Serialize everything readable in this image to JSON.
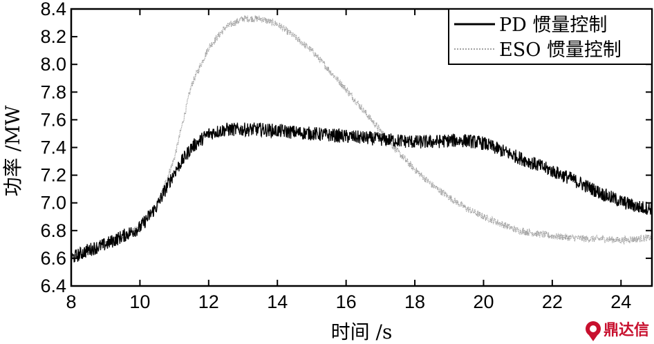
{
  "chart_data": {
    "type": "line",
    "title": "",
    "xlabel": "时间 /s",
    "ylabel": "功率 /MW",
    "xlim": [
      8,
      24.9
    ],
    "ylim": [
      6.4,
      8.4
    ],
    "xticks": [
      8,
      10,
      12,
      14,
      16,
      18,
      20,
      22,
      24
    ],
    "yticks": [
      6.4,
      6.6,
      6.8,
      7.0,
      7.2,
      7.4,
      7.6,
      7.8,
      8.0,
      8.2,
      8.4
    ],
    "ytick_labels": [
      "6.4",
      "6.6",
      "6.8",
      "7.0",
      "7.2",
      "7.4",
      "7.6",
      "7.8",
      "8.0",
      "8.2",
      "8.4"
    ],
    "grid": false,
    "legend_position": "top-right",
    "series": [
      {
        "name": "PD 惯量控制",
        "color": "#000000",
        "style": "solid",
        "noise": 0.05,
        "x": [
          8,
          8.5,
          9,
          9.5,
          10,
          10.5,
          11,
          11.5,
          12,
          12.5,
          13,
          13.5,
          14,
          14.5,
          15,
          15.5,
          16,
          16.5,
          17,
          17.5,
          18,
          18.5,
          19,
          19.5,
          20,
          20.5,
          21,
          21.5,
          22,
          22.5,
          23,
          23.5,
          24,
          24.5,
          24.9
        ],
        "y": [
          6.6,
          6.66,
          6.7,
          6.76,
          6.82,
          6.98,
          7.22,
          7.4,
          7.5,
          7.53,
          7.53,
          7.53,
          7.52,
          7.51,
          7.5,
          7.49,
          7.48,
          7.47,
          7.46,
          7.45,
          7.44,
          7.44,
          7.45,
          7.45,
          7.43,
          7.38,
          7.33,
          7.28,
          7.23,
          7.18,
          7.12,
          7.06,
          7.01,
          6.97,
          6.96
        ]
      },
      {
        "name": "ESO 惯量控制",
        "color": "#a0a0a0",
        "style": "dotted",
        "noise": 0.025,
        "x": [
          8,
          8.5,
          9,
          9.5,
          10,
          10.5,
          11,
          11.5,
          12,
          12.5,
          13,
          13.5,
          14,
          14.5,
          15,
          15.5,
          16,
          16.5,
          17,
          17.5,
          18,
          18.5,
          19,
          19.5,
          20,
          20.5,
          21,
          21.5,
          22,
          22.5,
          23,
          23.5,
          24,
          24.5,
          24.9
        ],
        "y": [
          6.6,
          6.66,
          6.7,
          6.76,
          6.82,
          6.98,
          7.32,
          7.85,
          8.12,
          8.27,
          8.33,
          8.33,
          8.29,
          8.2,
          8.1,
          7.96,
          7.82,
          7.67,
          7.52,
          7.37,
          7.24,
          7.13,
          7.04,
          6.96,
          6.9,
          6.85,
          6.8,
          6.78,
          6.76,
          6.75,
          6.74,
          6.74,
          6.73,
          6.74,
          6.75
        ]
      }
    ]
  },
  "watermark": {
    "text": "鼎达信",
    "color": "#c8102e",
    "icon": "pin-logo-icon"
  }
}
